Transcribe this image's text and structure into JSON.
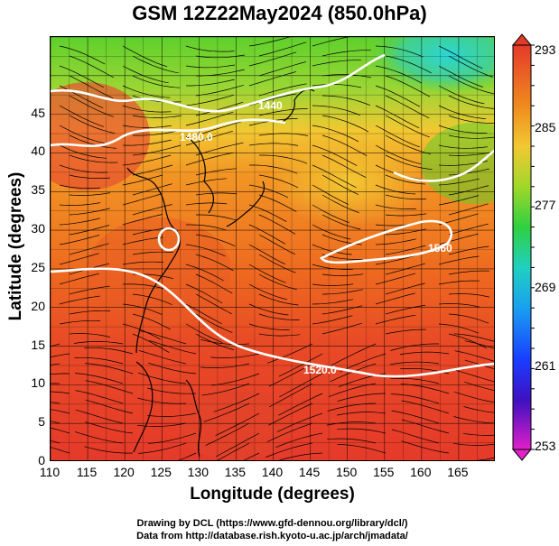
{
  "header": {
    "title": "GSM 12Z22May2024 (850.0hPa)"
  },
  "axes": {
    "xlabel": "Longitude (degrees)",
    "ylabel": "Latitude  (degrees)",
    "xticks": [
      "110",
      "115",
      "120",
      "125",
      "130",
      "135",
      "140",
      "145",
      "150",
      "155",
      "160",
      "165"
    ],
    "yticks": [
      "0",
      "5",
      "10",
      "15",
      "20",
      "25",
      "30",
      "35",
      "40",
      "45"
    ]
  },
  "colorbar": {
    "labels": [
      "293",
      "285",
      "277",
      "269",
      "261",
      "253"
    ]
  },
  "contours": {
    "labels": [
      "1480.0",
      "1440",
      "1560",
      "1520.0"
    ]
  },
  "credits": {
    "line1": "Drawing by DCL (https://www.gfd-dennou.org/library/dcl/)",
    "line2": "Data from http://database.rish.kyoto-u.ac.jp/arch/jmadata/"
  },
  "chart_data": {
    "type": "heatmap",
    "title": "GSM 12Z22May2024 (850.0hPa)",
    "xlabel": "Longitude (degrees)",
    "ylabel": "Latitude  (degrees)",
    "xlim": [
      110,
      170
    ],
    "ylim": [
      0,
      50
    ],
    "colorbar_range": [
      253,
      293
    ],
    "colors": {
      "warm": "#e53a2a",
      "orange": "#f08a1e",
      "yellow": "#f2c832",
      "green": "#5ad02a",
      "cyan": "#2ad0d0",
      "blue": "#1a3cff",
      "magenta": "#e020c8"
    },
    "contour_levels": [
      1440,
      1480,
      1520,
      1560
    ]
  }
}
